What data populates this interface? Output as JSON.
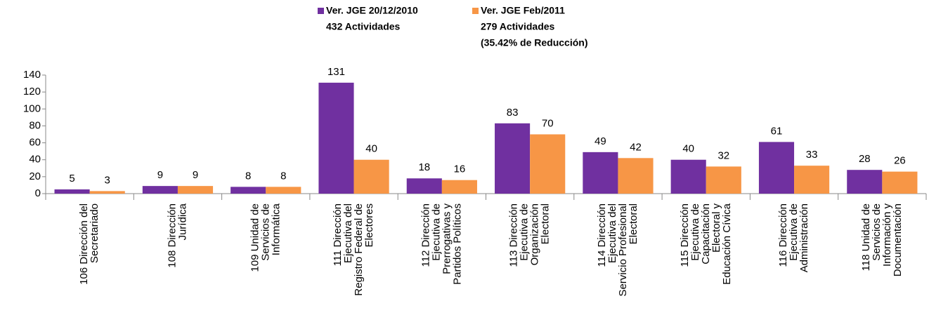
{
  "chart_data": {
    "type": "bar",
    "series": [
      {
        "name": "Ver. JGE 20/12/2010",
        "legend_lines": [
          "432 Actividades"
        ],
        "color": "#7030a0",
        "values": [
          5,
          9,
          8,
          131,
          18,
          83,
          49,
          40,
          61,
          28
        ]
      },
      {
        "name": "Ver. JGE Feb/2011",
        "legend_lines": [
          "279 Actividades",
          "(35.42% de Reducción)"
        ],
        "color": "#f79646",
        "values": [
          3,
          9,
          8,
          40,
          16,
          70,
          42,
          32,
          33,
          26
        ]
      }
    ],
    "categories": [
      [
        "106 Dirección del",
        "Secretariado"
      ],
      [
        "108 Dirección",
        "Jurídica"
      ],
      [
        "109 Unidad de",
        "Servicios de",
        "Informática"
      ],
      [
        "111 Dirección",
        "Ejecutiva del",
        "Registro Federal de",
        "Electores"
      ],
      [
        "112 Dirección",
        "Ejecutiva de",
        "Prerrogativas y",
        "Partidos Políticos"
      ],
      [
        "113 Dirección",
        "Ejecutiva de",
        "Organización",
        "Electoral"
      ],
      [
        "114 Dirección",
        "Ejecutiva del",
        "Servicio Profesional",
        "Electoral"
      ],
      [
        "115 Dirección",
        "Ejecutiva de",
        "Capacitación",
        "Electoral y",
        "Educación Cívica"
      ],
      [
        "116 Dirección",
        "Ejecutiva de",
        "Administración"
      ],
      [
        "118 Unidad de",
        "Servicios de",
        "Información y",
        "Documentación"
      ]
    ],
    "ylim": [
      0,
      140
    ],
    "yticks": [
      0,
      20,
      40,
      60,
      80,
      100,
      120,
      140
    ],
    "grid": false,
    "legend": "top"
  }
}
